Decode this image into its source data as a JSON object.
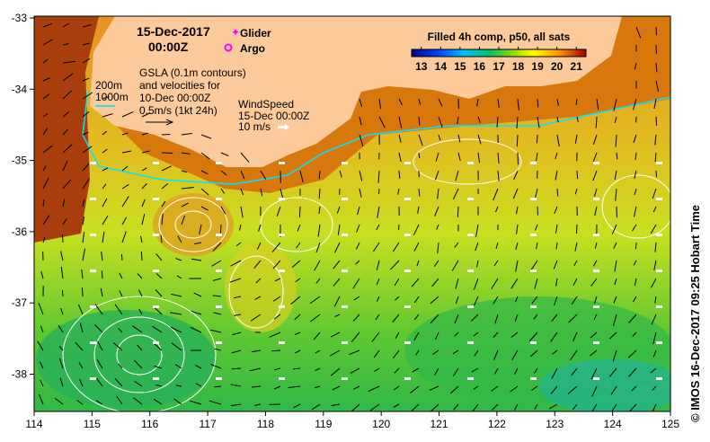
{
  "header": {
    "date": "15-Dec-2017",
    "time": "00:00Z"
  },
  "legend": {
    "glider_label": "Glider",
    "argo_label": "Argo",
    "glider_color": "#ff00ff",
    "argo_color": "#ff00ff"
  },
  "bathymetry": {
    "contour_200": "200m",
    "contour_1000": "1000m",
    "contour_color": "#00e5ff"
  },
  "gsla": {
    "line1": "GSLA (0.1m contours)",
    "line2": "and velocities for",
    "line3": "10-Dec 00:00Z",
    "line4": "0.5m/s (1kt 24h)"
  },
  "wind": {
    "line1": "WindSpeed",
    "line2": "15-Dec 00:00Z",
    "line3": "10 m/s"
  },
  "colorbar": {
    "title": "Filled 4h comp, p50, all sats",
    "ticks": [
      "13",
      "14",
      "15",
      "16",
      "17",
      "18",
      "19",
      "20",
      "21"
    ],
    "range": [
      12.5,
      21.5
    ]
  },
  "axes": {
    "lon_ticks": [
      "114",
      "115",
      "116",
      "117",
      "118",
      "119",
      "120",
      "121",
      "122",
      "123",
      "124",
      "125"
    ],
    "lat_ticks": [
      "-33",
      "-34",
      "-35",
      "-36",
      "-37",
      "-38"
    ]
  },
  "credit": "© IMOS 16-Dec-2017 09:25 Hobart Time",
  "colors": {
    "land": "#fdcb9b",
    "ocean_warm": "#d87a10",
    "ocean_mid": "#c8e020",
    "ocean_cool": "#40c040"
  }
}
